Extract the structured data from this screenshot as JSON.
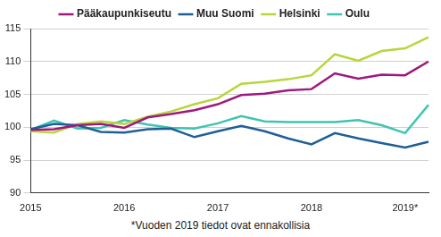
{
  "chart_data": {
    "type": "line",
    "categories": [
      "2015",
      null,
      null,
      null,
      "2016",
      null,
      null,
      null,
      "2017",
      null,
      null,
      null,
      "2018",
      null,
      null,
      null,
      "2019*",
      null
    ],
    "series": [
      {
        "name": "Pääkaupunkiseutu",
        "color": "#a0177e",
        "values": [
          99.6,
          99.7,
          100.3,
          100.5,
          99.9,
          101.5,
          102.0,
          102.6,
          103.5,
          104.9,
          105.1,
          105.6,
          105.8,
          108.2,
          107.4,
          108.0,
          107.9,
          110.0
        ]
      },
      {
        "name": "Muu Suomi",
        "color": "#1f5f96",
        "values": [
          99.7,
          100.5,
          100.3,
          99.3,
          99.2,
          99.7,
          99.8,
          98.5,
          99.4,
          100.2,
          99.4,
          98.3,
          97.4,
          99.1,
          98.3,
          97.6,
          96.9,
          97.8
        ]
      },
      {
        "name": "Helsinki",
        "color": "#b7d63a",
        "values": [
          99.4,
          99.2,
          100.5,
          100.9,
          100.5,
          101.6,
          102.4,
          103.5,
          104.4,
          106.6,
          106.9,
          107.3,
          107.9,
          111.1,
          110.1,
          111.6,
          112.0,
          113.7
        ]
      },
      {
        "name": "Oulu",
        "color": "#3fc4b2",
        "values": [
          99.6,
          101.0,
          99.8,
          99.9,
          101.1,
          100.4,
          99.9,
          99.8,
          100.6,
          101.7,
          100.9,
          100.8,
          100.8,
          100.8,
          101.1,
          100.3,
          99.1,
          103.4
        ]
      }
    ],
    "ylim": [
      90,
      115
    ],
    "yticks": [
      90,
      95,
      100,
      105,
      110,
      115
    ],
    "grid": true,
    "legend": "top",
    "annotations": [
      "*Vuoden 2019 tiedot ovat ennakollisia"
    ]
  }
}
